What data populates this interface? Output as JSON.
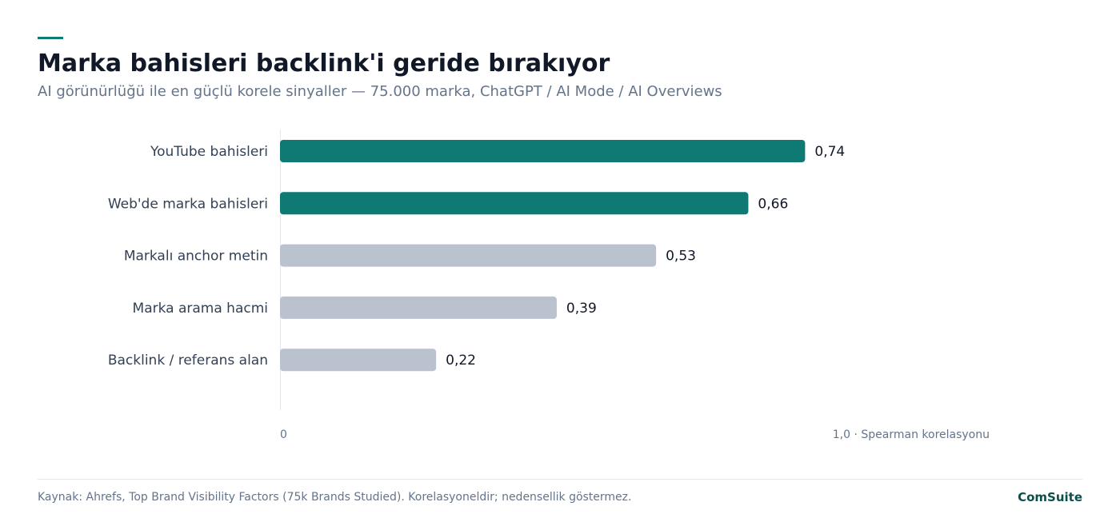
{
  "header": {
    "title": "Marka bahisleri backlink'i geride bırakıyor",
    "subtitle": "AI görünürlüğü ile en güçlü korele sinyaller — 75.000 marka, ChatGPT / AI Mode / AI Overviews"
  },
  "chart_data": {
    "type": "bar",
    "orientation": "horizontal",
    "categories": [
      "YouTube bahisleri",
      "Web'de marka bahisleri",
      "Markalı anchor metin",
      "Marka arama hacmi",
      "Backlink / referans alan"
    ],
    "values": [
      0.74,
      0.66,
      0.53,
      0.39,
      0.22
    ],
    "value_labels": [
      "0,74",
      "0,66",
      "0,53",
      "0,39",
      "0,22"
    ],
    "highlighted": [
      true,
      true,
      false,
      false,
      false
    ],
    "colors": {
      "highlight": "#0e7a73",
      "muted": "#b9c2ce",
      "axis": "#e5e7eb",
      "label": "#334155",
      "value": "#111827",
      "tick": "#64748b"
    },
    "xlim": [
      0,
      1.0
    ],
    "tick_labels": {
      "min": "0",
      "max": "1,0 · Spearman korelasyonu"
    },
    "grid": false
  },
  "footer": {
    "source": "Kaynak: Ahrefs, Top Brand Visibility Factors (75k Brands Studied). Korelasyoneldir; nedensellik göstermez.",
    "brand": "ComSuite"
  }
}
